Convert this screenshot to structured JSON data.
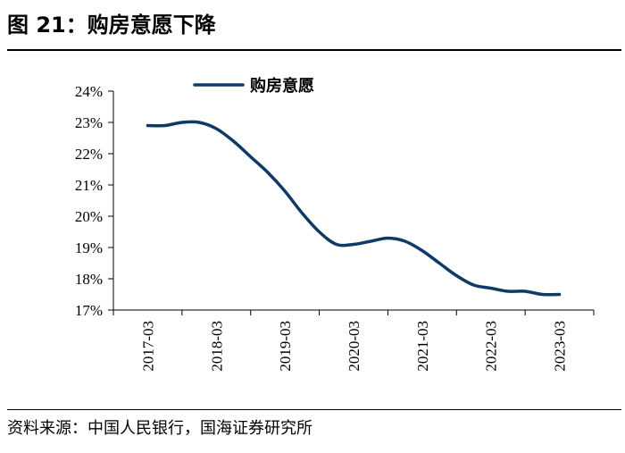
{
  "figure": {
    "title": "图 21：购房意愿下降",
    "source": "资料来源：中国人民银行，国海证券研究所"
  },
  "chart_data": {
    "type": "line",
    "categories": [
      "2017-03",
      "2018-03",
      "2019-03",
      "2020-03",
      "2021-03",
      "2022-03",
      "2023-03"
    ],
    "y_ticks": [
      "17%",
      "18%",
      "19%",
      "20%",
      "21%",
      "22%",
      "23%",
      "24%"
    ],
    "ylim": [
      17,
      24
    ],
    "series": [
      {
        "name": "购房意愿",
        "color": "#0d3a66",
        "x": [
          "2017-03",
          "2017-06",
          "2017-09",
          "2017-12",
          "2018-03",
          "2018-06",
          "2018-09",
          "2018-12",
          "2019-03",
          "2019-06",
          "2019-09",
          "2019-12",
          "2020-03",
          "2020-06",
          "2020-09",
          "2020-12",
          "2021-03",
          "2021-06",
          "2021-09",
          "2021-12",
          "2022-03",
          "2022-06",
          "2022-09",
          "2022-12",
          "2023-03"
        ],
        "values": [
          22.9,
          22.9,
          23.0,
          23.0,
          22.8,
          22.4,
          21.9,
          21.4,
          20.8,
          20.1,
          19.5,
          19.1,
          19.1,
          19.2,
          19.3,
          19.2,
          18.9,
          18.5,
          18.1,
          17.8,
          17.7,
          17.6,
          17.6,
          17.5,
          17.5
        ]
      }
    ],
    "legend_position": "top-left",
    "grid": false
  }
}
